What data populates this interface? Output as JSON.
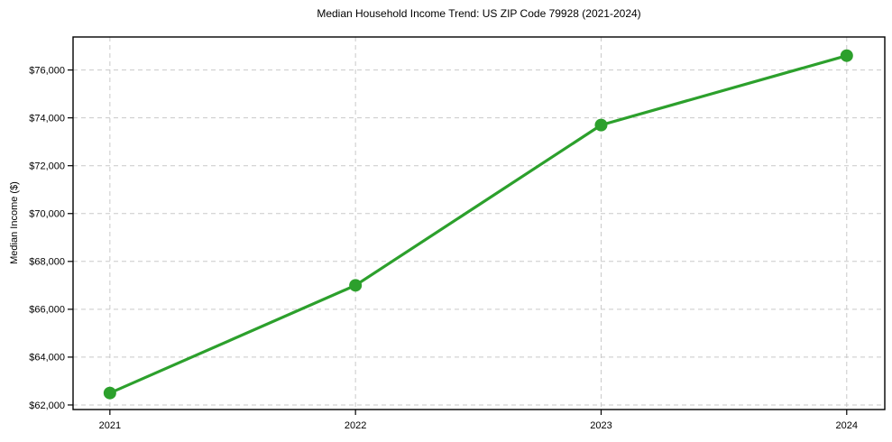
{
  "chart_data": {
    "type": "line",
    "title": "Median Household Income Trend: US ZIP Code 79928 (2021-2024)",
    "xlabel": "",
    "ylabel": "Median Income ($)",
    "x": [
      2021,
      2022,
      2023,
      2024
    ],
    "values": [
      62500,
      67000,
      73700,
      76600
    ],
    "xlim": [
      2020.85,
      2024.155
    ],
    "ylim": [
      61810,
      77380
    ],
    "xticks": [
      {
        "value": 2021,
        "label": "2021"
      },
      {
        "value": 2022,
        "label": "2022"
      },
      {
        "value": 2023,
        "label": "2023"
      },
      {
        "value": 2024,
        "label": "2024"
      }
    ],
    "yticks": [
      {
        "value": 62000,
        "label": "$62,000"
      },
      {
        "value": 64000,
        "label": "$64,000"
      },
      {
        "value": 66000,
        "label": "$66,000"
      },
      {
        "value": 68000,
        "label": "$68,000"
      },
      {
        "value": 70000,
        "label": "$70,000"
      },
      {
        "value": 72000,
        "label": "$72,000"
      },
      {
        "value": 74000,
        "label": "$74,000"
      },
      {
        "value": 76000,
        "label": "$76,000"
      }
    ],
    "grid": true,
    "legend_position": "none",
    "line_color": "#2ca02c",
    "marker_color": "#2ca02c",
    "grid_color": "#c9c9c9",
    "axis_color": "#000000",
    "background_color": "#ffffff"
  }
}
